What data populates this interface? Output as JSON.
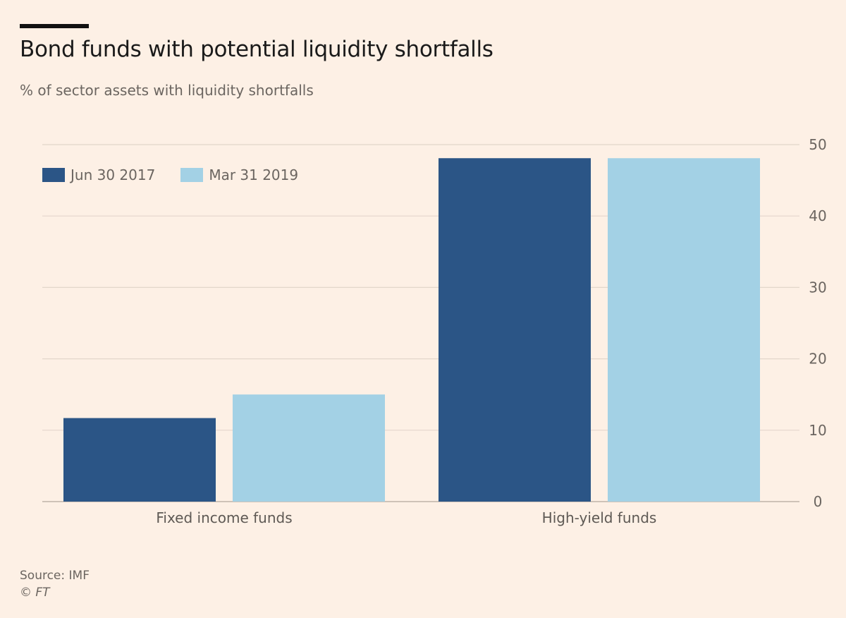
{
  "header": {
    "title": "Bond funds with potential liquidity shortfalls",
    "subtitle": "% of sector assets with liquidity shortfalls"
  },
  "footer": {
    "source": "Source: IMF",
    "copyright": "© FT"
  },
  "colors": {
    "background": "#fdf0e5",
    "series1": "#2b5586",
    "series2": "#a3d1e5",
    "grid": "#e3d6cb"
  },
  "chart_data": {
    "type": "bar",
    "title": "Bond funds with potential liquidity shortfalls",
    "subtitle": "% of sector assets with liquidity shortfalls",
    "xlabel": "",
    "ylabel": "",
    "categories": [
      "Fixed income funds",
      "High-yield funds"
    ],
    "series": [
      {
        "name": "Jun 30 2017",
        "color": "#2b5586",
        "values": [
          11.7,
          48.1
        ]
      },
      {
        "name": "Mar 31 2019",
        "color": "#a3d1e5",
        "values": [
          15.0,
          48.1
        ]
      }
    ],
    "ylim": [
      0,
      50
    ],
    "yticks": [
      0,
      10,
      20,
      30,
      40,
      50
    ],
    "y_axis_side": "right",
    "grid": true,
    "legend_position": "top-left",
    "source": "Source: IMF"
  }
}
